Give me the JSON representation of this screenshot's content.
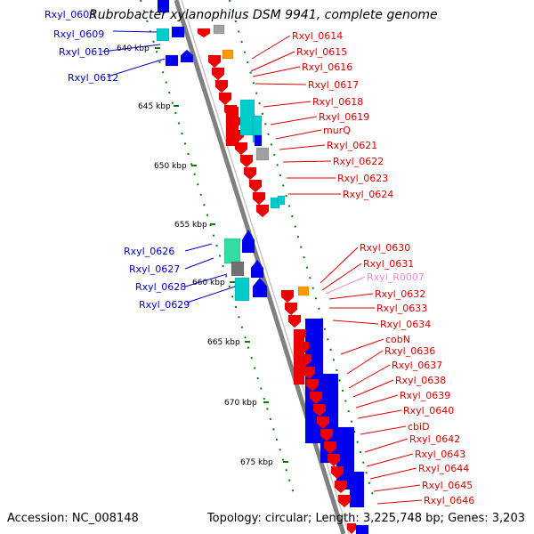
{
  "title": "Rubrobacter xylanophilus DSM 9941, complete genome",
  "accession": "Accession: NC_008148",
  "topology": "Topology: circular; Length: 3,225,748 bp; Genes: 3,203",
  "colors": {
    "backbone": "#808080",
    "forward_label": "#0000cc",
    "reverse_label": "#dd0000",
    "rna_label": "#f08cc8",
    "tick": "#008000",
    "gene_red": "#ee0000",
    "gene_blue": "#0000ee",
    "gene_cyan": "#00cccc",
    "gene_gray": "#a0a0a0",
    "gene_orange": "#ff9900"
  },
  "scale_ticks": [
    "640 kbp",
    "645 kbp",
    "650 kbp",
    "655 kbp",
    "660 kbp",
    "665 kbp",
    "670 kbp",
    "675 kbp"
  ],
  "left_labels": [
    "Rxyl_0608",
    "Rxyl_0609",
    "Rxyl_0610",
    "Rxyl_0612",
    "Rxyl_0626",
    "Rxyl_0627",
    "Rxyl_0628",
    "Rxyl_0629"
  ],
  "right_labels": [
    "Rxyl_0614",
    "Rxyl_0615",
    "Rxyl_0616",
    "Rxyl_0617",
    "Rxyl_0618",
    "Rxyl_0619",
    "murQ",
    "Rxyl_0621",
    "Rxyl_0622",
    "Rxyl_0623",
    "Rxyl_0624",
    "Rxyl_0630",
    "Rxyl_0631",
    "Rxyl_R0007",
    "Rxyl_0632",
    "Rxyl_0633",
    "Rxyl_0634",
    "cobN",
    "Rxyl_0636",
    "Rxyl_0637",
    "Rxyl_0638",
    "Rxyl_0639",
    "Rxyl_0640",
    "cbiD",
    "Rxyl_0642",
    "Rxyl_0643",
    "Rxyl_0644",
    "Rxyl_0645",
    "Rxyl_0646"
  ]
}
